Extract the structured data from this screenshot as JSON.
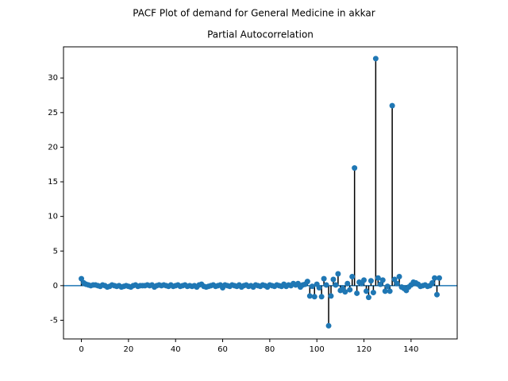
{
  "chart_data": {
    "type": "stem",
    "suptitle": "PACF Plot of demand for General Medicine in akkar",
    "title": "Partial Autocorrelation",
    "color": "#1f77b4",
    "stem_color": "#000000",
    "x": [
      0,
      1,
      2,
      3,
      4,
      5,
      6,
      7,
      8,
      9,
      10,
      11,
      12,
      13,
      14,
      15,
      16,
      17,
      18,
      19,
      20,
      21,
      22,
      23,
      24,
      25,
      26,
      27,
      28,
      29,
      30,
      31,
      32,
      33,
      34,
      35,
      36,
      37,
      38,
      39,
      40,
      41,
      42,
      43,
      44,
      45,
      46,
      47,
      48,
      49,
      50,
      51,
      52,
      53,
      54,
      55,
      56,
      57,
      58,
      59,
      60,
      61,
      62,
      63,
      64,
      65,
      66,
      67,
      68,
      69,
      70,
      71,
      72,
      73,
      74,
      75,
      76,
      77,
      78,
      79,
      80,
      81,
      82,
      83,
      84,
      85,
      86,
      87,
      88,
      89,
      90,
      91,
      92,
      93,
      94,
      95,
      96,
      97,
      98,
      99,
      100,
      101,
      102,
      103,
      104,
      105,
      106,
      107,
      108,
      109,
      110,
      111,
      112,
      113,
      114,
      115,
      116,
      117,
      118,
      119,
      120,
      121,
      122,
      123,
      124,
      125,
      126,
      127,
      128,
      129,
      130,
      131,
      132,
      133,
      134,
      135,
      136,
      137,
      138,
      139,
      140,
      141,
      142,
      143,
      144,
      145,
      146,
      147,
      148,
      149,
      150,
      151,
      152
    ],
    "values": [
      1.0,
      0.4,
      0.2,
      0.1,
      0.0,
      0.1,
      0.1,
      0.0,
      -0.1,
      0.1,
      0.0,
      -0.2,
      -0.1,
      0.1,
      0.0,
      -0.1,
      0.0,
      -0.2,
      -0.1,
      0.0,
      -0.1,
      -0.2,
      0.0,
      0.1,
      -0.1,
      0.0,
      0.0,
      0.0,
      0.1,
      0.0,
      0.1,
      -0.2,
      0.0,
      0.1,
      0.0,
      0.1,
      0.0,
      -0.1,
      0.1,
      -0.1,
      0.0,
      0.1,
      -0.1,
      0.0,
      0.1,
      -0.1,
      0.0,
      -0.1,
      0.0,
      -0.2,
      0.1,
      0.2,
      -0.1,
      -0.2,
      -0.1,
      0.0,
      0.1,
      -0.1,
      0.0,
      0.1,
      -0.3,
      0.1,
      0.0,
      -0.1,
      0.1,
      0.0,
      -0.1,
      0.1,
      -0.2,
      0.0,
      0.1,
      -0.1,
      0.0,
      -0.2,
      0.1,
      0.0,
      -0.1,
      0.1,
      0.0,
      -0.2,
      0.1,
      0.0,
      -0.1,
      0.1,
      0.0,
      -0.1,
      0.2,
      -0.1,
      0.1,
      0.0,
      0.3,
      0.1,
      0.3,
      -0.2,
      0.1,
      0.2,
      0.6,
      -1.5,
      -0.1,
      -1.6,
      0.2,
      -0.3,
      -1.6,
      1.0,
      0.1,
      -5.8,
      -1.5,
      0.9,
      0.1,
      1.7,
      -0.7,
      -0.4,
      -0.9,
      0.3,
      -0.6,
      1.3,
      17.0,
      -1.1,
      0.5,
      0.3,
      0.8,
      -0.8,
      -1.7,
      0.7,
      -1.0,
      32.8,
      1.1,
      0.2,
      0.8,
      -0.8,
      -0.1,
      -0.8,
      26.0,
      0.9,
      0.3,
      1.3,
      -0.2,
      -0.4,
      -0.7,
      -0.2,
      0.1,
      0.5,
      0.4,
      0.2,
      -0.1,
      0.0,
      0.1,
      -0.1,
      0.0,
      0.4,
      1.1,
      -1.3,
      1.1
    ],
    "xlim": [
      -7.6,
      159.6
    ],
    "ylim": [
      -7.7,
      34.5
    ],
    "xticks": [
      0,
      20,
      40,
      60,
      80,
      100,
      120,
      140
    ],
    "yticks": [
      -5,
      0,
      5,
      10,
      15,
      20,
      25,
      30
    ]
  }
}
